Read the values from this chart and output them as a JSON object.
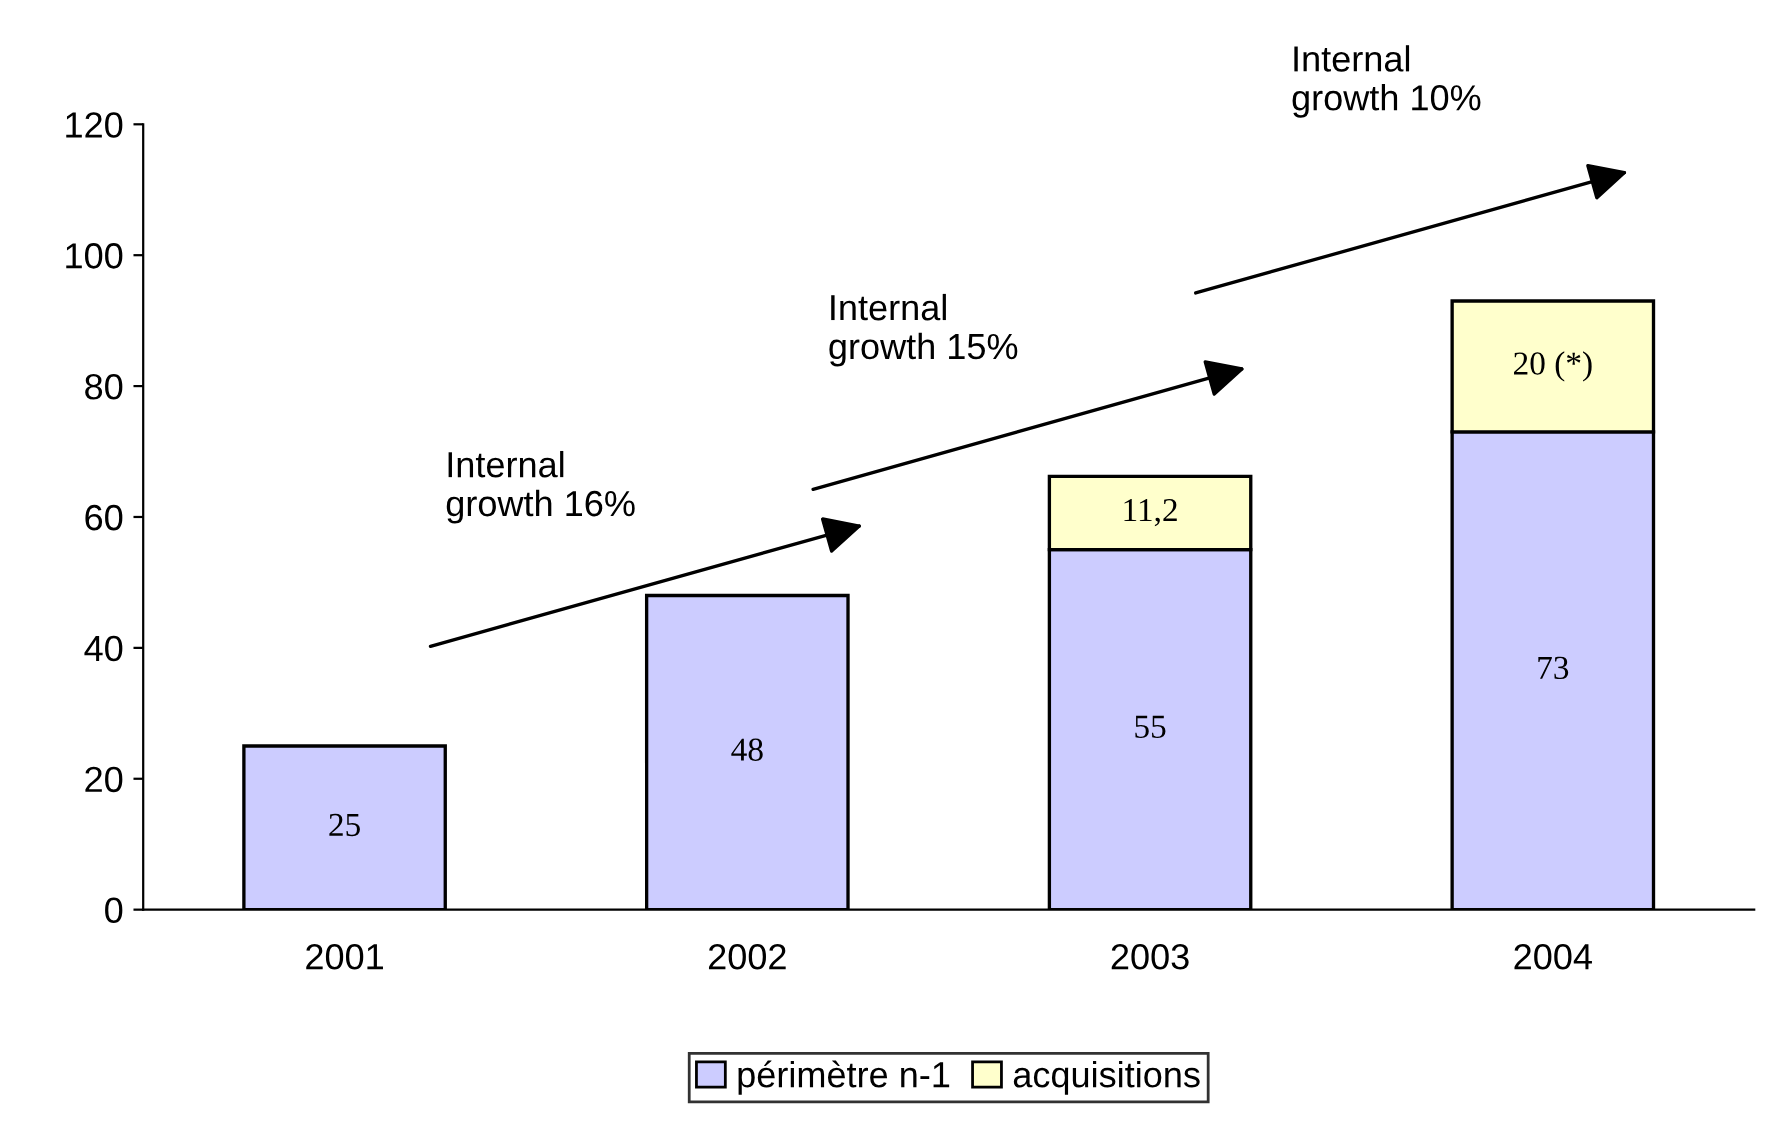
{
  "chart_data": {
    "type": "bar",
    "stacked": true,
    "categories": [
      "2001",
      "2002",
      "2003",
      "2004"
    ],
    "series": [
      {
        "name": "périmètre n-1",
        "color": "#ccccff",
        "values": [
          25,
          48,
          55,
          73
        ],
        "value_labels": [
          "25",
          "48",
          "55",
          "73"
        ]
      },
      {
        "name": "acquisitions",
        "color": "#ffffcc",
        "values": [
          null,
          null,
          11.2,
          20
        ],
        "value_labels": [
          null,
          null,
          "11,2",
          "20 (*)"
        ]
      }
    ],
    "ylim": [
      0,
      120
    ],
    "yticks": [
      0,
      20,
      40,
      60,
      80,
      100,
      120
    ],
    "grid": false,
    "legend": "bottom",
    "annotations": [
      "Internal\ngrowth 16%",
      "Internal\ngrowth 15%",
      "Internal\ngrowth 10%"
    ]
  }
}
